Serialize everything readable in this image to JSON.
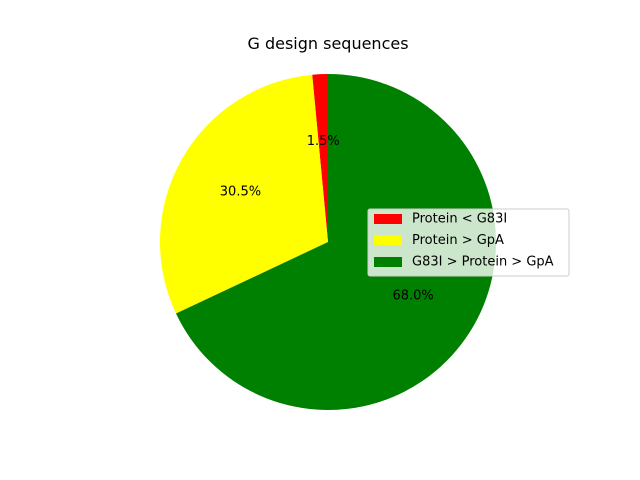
{
  "chart_data": {
    "type": "pie",
    "title": "G design sequences",
    "slices": [
      {
        "label": "Protein < G83I",
        "value": 1.5,
        "pct_label": "1.5%",
        "color": "#ff0000"
      },
      {
        "label": "Protein > GpA",
        "value": 30.5,
        "pct_label": "30.5%",
        "color": "#ffff00"
      },
      {
        "label": "G83I > Protein > GpA",
        "value": 68.0,
        "pct_label": "68.0%",
        "color": "#008000"
      }
    ],
    "start_angle_deg": 90,
    "direction": "counterclockwise",
    "legend_position": "center-right"
  }
}
